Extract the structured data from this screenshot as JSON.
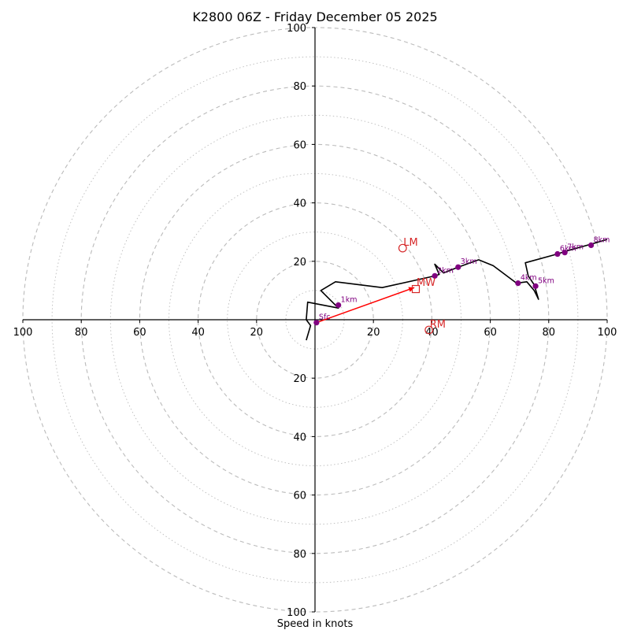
{
  "chart_data": {
    "type": "hodograph",
    "title": "K2800 06Z - Friday December 05 2025",
    "xlabel": "Speed in knots",
    "xlim": [
      -100,
      100
    ],
    "ylim": [
      -100,
      100
    ],
    "ring_step": 10,
    "x_tick_labels": [
      "100",
      "80",
      "60",
      "40",
      "20",
      "20",
      "40",
      "60",
      "80",
      "100"
    ],
    "x_tick_values": [
      -100,
      -80,
      -60,
      -40,
      -20,
      20,
      40,
      60,
      80,
      100
    ],
    "y_tick_labels": [
      "100",
      "80",
      "60",
      "40",
      "20",
      "20",
      "40",
      "60",
      "80",
      "100"
    ],
    "y_tick_values": [
      100,
      80,
      60,
      40,
      20,
      -20,
      -40,
      -60,
      -80,
      -100
    ],
    "hodograph_trace": [
      [
        -3,
        -7
      ],
      [
        -1.5,
        -2
      ],
      [
        -3,
        0
      ],
      [
        -2.5,
        6
      ],
      [
        8,
        4
      ],
      [
        2,
        10
      ],
      [
        7,
        13
      ],
      [
        23,
        11
      ],
      [
        41,
        15
      ],
      [
        42.5,
        15.5
      ],
      [
        41,
        19
      ],
      [
        44,
        16
      ],
      [
        49,
        18
      ],
      [
        56,
        20.5
      ],
      [
        61,
        18.5
      ],
      [
        69,
        12.5
      ],
      [
        72.5,
        13
      ],
      [
        75,
        10
      ],
      [
        76,
        8
      ],
      [
        76.5,
        7
      ],
      [
        75,
        12
      ],
      [
        73,
        15
      ],
      [
        72,
        19.5
      ],
      [
        83,
        22.5
      ],
      [
        86,
        23.5
      ],
      [
        95,
        26
      ],
      [
        100,
        27.5
      ]
    ],
    "height_markers": [
      {
        "label": "Sfc",
        "u": 0.5,
        "v": -1
      },
      {
        "label": "1km",
        "u": 8,
        "v": 5
      },
      {
        "label": "2km",
        "u": 41,
        "v": 15
      },
      {
        "label": "3km",
        "u": 49,
        "v": 18
      },
      {
        "label": "4km",
        "u": 69.5,
        "v": 12.5
      },
      {
        "label": "5km",
        "u": 75.5,
        "v": 11.5
      },
      {
        "label": "6km",
        "u": 83,
        "v": 22.5
      },
      {
        "label": "7km",
        "u": 85.5,
        "v": 23
      },
      {
        "label": "8km",
        "u": 94.5,
        "v": 25.5
      }
    ],
    "storm_motion": {
      "mean_wind": {
        "label": "MW",
        "u": 34.5,
        "v": 10.5
      },
      "left_mover": {
        "label": "LM",
        "u": 30,
        "v": 24.5
      },
      "right_mover": {
        "label": "RM",
        "u": 39,
        "v": -3.5
      }
    },
    "shear_vector": {
      "from": [
        0.5,
        -1
      ],
      "to": [
        34,
        11
      ]
    },
    "colors": {
      "trace": "#000000",
      "marker": "#800080",
      "storm": "#d62728",
      "shear": "#ff0000",
      "grid": "#bbbbbb"
    }
  }
}
